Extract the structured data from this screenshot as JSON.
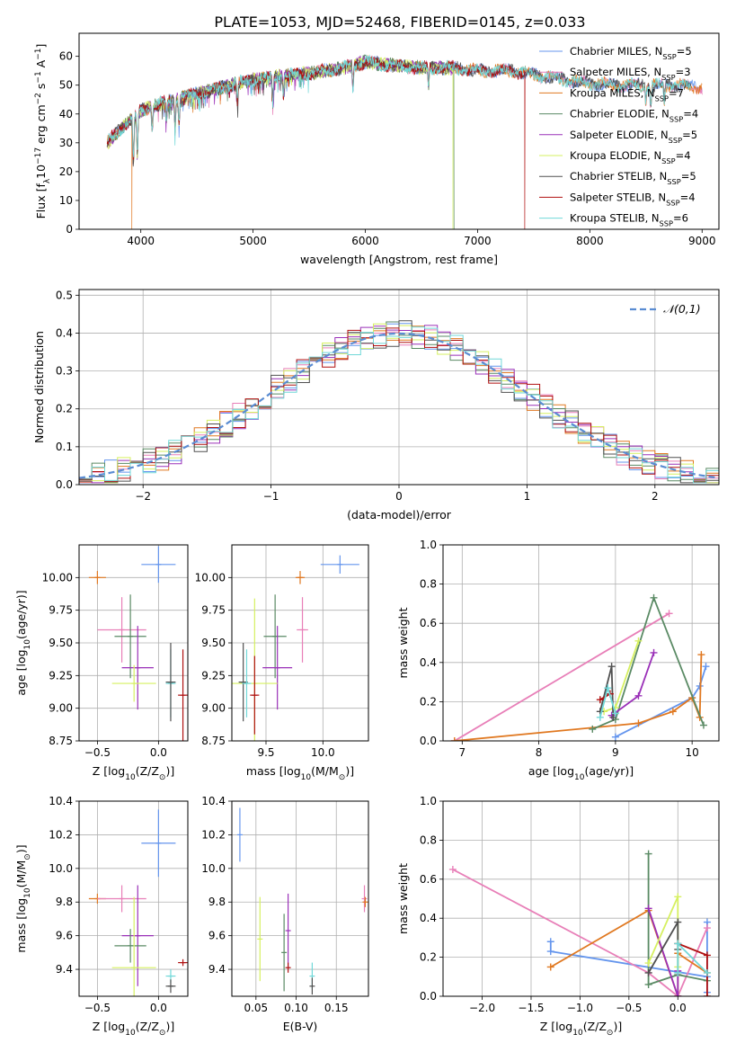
{
  "figure_title": "PLATE=1053, MJD=52468, FIBERID=0145, z=0.033",
  "colors": {
    "Chabrier MILES": "#6495ed",
    "Salpeter MILES": "#e87fb8",
    "Kroupa MILES": "#e07820",
    "Chabrier ELODIE": "#5a8a64",
    "Salpeter ELODIE": "#9a30b8",
    "Kroupa ELODIE": "#d6f060",
    "Chabrier STELIB": "#505050",
    "Salpeter STELIB": "#b01010",
    "Kroupa STELIB": "#70d8d8"
  },
  "chart_data": [
    {
      "id": "spectrum",
      "type": "line",
      "title": "PLATE=1053, MJD=52468, FIBERID=0145, z=0.033",
      "xlabel_parts": [
        "wavelength [Angstrom, rest frame]"
      ],
      "ylabel_parts": [
        "Flux [f",
        "λ",
        "10",
        "−17",
        " erg cm",
        "−2",
        " s",
        "−1",
        " A",
        "−1",
        "]"
      ],
      "xlim": [
        3450,
        9150
      ],
      "ylim": [
        0,
        68
      ],
      "xticks": [
        4000,
        5000,
        6000,
        7000,
        8000,
        9000
      ],
      "yticks": [
        0,
        10,
        20,
        30,
        40,
        50,
        60
      ],
      "grid": false,
      "legend": "upper right",
      "continuum": [
        [
          3700,
          30
        ],
        [
          3800,
          34
        ],
        [
          3900,
          38
        ],
        [
          4000,
          41
        ],
        [
          4200,
          44
        ],
        [
          4400,
          46
        ],
        [
          4600,
          48
        ],
        [
          4800,
          50
        ],
        [
          5000,
          52
        ],
        [
          5200,
          53
        ],
        [
          5500,
          54
        ],
        [
          5800,
          56
        ],
        [
          6000,
          58
        ],
        [
          6200,
          57
        ],
        [
          6500,
          56
        ],
        [
          6800,
          56
        ],
        [
          7000,
          55
        ],
        [
          7300,
          55
        ],
        [
          7600,
          53
        ],
        [
          7900,
          51
        ],
        [
          8200,
          50
        ],
        [
          8500,
          50
        ],
        [
          8800,
          50
        ],
        [
          9000,
          49
        ]
      ],
      "absorption_features": [
        [
          3934,
          16
        ],
        [
          3969,
          14
        ],
        [
          4102,
          8
        ],
        [
          4227,
          6
        ],
        [
          4305,
          9
        ],
        [
          4340,
          8
        ],
        [
          4861,
          7
        ],
        [
          5175,
          9
        ],
        [
          5270,
          6
        ],
        [
          5890,
          8
        ],
        [
          6563,
          6
        ],
        [
          8498,
          5
        ],
        [
          8542,
          7
        ],
        [
          8662,
          6
        ]
      ],
      "drops": [
        {
          "series": "Chabrier STELIB",
          "x": 3870
        },
        {
          "series": "Kroupa MILES",
          "x": 3920
        },
        {
          "series": "Chabrier ELODIE",
          "x": 6790
        },
        {
          "series": "Kroupa ELODIE",
          "x": 6780
        },
        {
          "series": "Salpeter STELIB",
          "x": 7420
        }
      ],
      "series": [
        {
          "name": "Chabrier MILES, N",
          "sub": "SSP",
          "suffix": "=5",
          "range": [
            3700,
            9000
          ]
        },
        {
          "name": "Salpeter MILES, N",
          "sub": "SSP",
          "suffix": "=3",
          "range": [
            3700,
            9000
          ]
        },
        {
          "name": "Kroupa MILES, N",
          "sub": "SSP",
          "suffix": "=7",
          "range": [
            3700,
            9000
          ]
        },
        {
          "name": "Chabrier ELODIE, N",
          "sub": "SSP",
          "suffix": "=4",
          "range": [
            3700,
            6790
          ]
        },
        {
          "name": "Salpeter ELODIE, N",
          "sub": "SSP",
          "suffix": "=5",
          "range": [
            3700,
            6790
          ]
        },
        {
          "name": "Kroupa ELODIE, N",
          "sub": "SSP",
          "suffix": "=4",
          "range": [
            3700,
            6780
          ]
        },
        {
          "name": "Chabrier STELIB, N",
          "sub": "SSP",
          "suffix": "=5",
          "range": [
            3700,
            8900
          ]
        },
        {
          "name": "Salpeter STELIB, N",
          "sub": "SSP",
          "suffix": "=4",
          "range": [
            3700,
            7420
          ]
        },
        {
          "name": "Kroupa STELIB, N",
          "sub": "SSP",
          "suffix": "=6",
          "range": [
            3700,
            8900
          ]
        }
      ]
    },
    {
      "id": "residuals",
      "type": "histogram",
      "xlabel_parts": [
        "(data-model)/error"
      ],
      "ylabel_parts": [
        "Normed distribution"
      ],
      "xlim": [
        -2.5,
        2.5
      ],
      "ylim": [
        0,
        0.515
      ],
      "xticks": [
        -2,
        -1,
        0,
        1,
        2
      ],
      "yticks": [
        0.0,
        0.1,
        0.2,
        0.3,
        0.4,
        0.5
      ],
      "grid": true,
      "bin_width": 0.1,
      "legend": "upper right",
      "reference_curve": {
        "label": "𝒩(0,1)",
        "mean": 0,
        "sigma": 1,
        "color": "#5a8cd2"
      }
    },
    {
      "id": "age_vs_Z",
      "type": "errorbar",
      "xlabel_parts": [
        "Z [log",
        "10",
        "(Z/Z",
        "⊙",
        ")]"
      ],
      "ylabel_parts": [
        "age  [log",
        "10",
        "(age/yr)]"
      ],
      "xlim": [
        -0.65,
        0.24
      ],
      "ylim": [
        8.75,
        10.25
      ],
      "xticks": [
        -0.5,
        0.0
      ],
      "yticks": [
        8.75,
        9.0,
        9.25,
        9.5,
        9.75,
        10.0
      ],
      "grid": true,
      "points": [
        {
          "series": "Chabrier MILES",
          "x": 0.0,
          "xerr": 0.14,
          "y": 10.1,
          "yerr": 0.14
        },
        {
          "series": "Kroupa MILES",
          "x": -0.5,
          "xerr": 0.07,
          "y": 10.0,
          "yerr": 0.05
        },
        {
          "series": "Salpeter MILES",
          "x": -0.3,
          "xerr": 0.2,
          "y": 9.6,
          "yerr": 0.25
        },
        {
          "series": "Chabrier ELODIE",
          "x": -0.23,
          "xerr": 0.13,
          "y": 9.55,
          "yerr": 0.32
        },
        {
          "series": "Salpeter ELODIE",
          "x": -0.17,
          "xerr": 0.13,
          "y": 9.31,
          "yerr": 0.32
        },
        {
          "series": "Kroupa ELODIE",
          "x": -0.2,
          "xerr": 0.18,
          "y": 9.19,
          "yerr": 0.14
        },
        {
          "series": "Kroupa STELIB",
          "x": 0.1,
          "xerr": 0.04,
          "y": 9.19,
          "yerr": 0.26
        },
        {
          "series": "Chabrier STELIB",
          "x": 0.1,
          "xerr": 0.04,
          "y": 9.2,
          "yerr": 0.3
        },
        {
          "series": "Salpeter STELIB",
          "x": 0.2,
          "xerr": 0.04,
          "y": 9.1,
          "yerr": 0.35
        }
      ]
    },
    {
      "id": "age_vs_mass",
      "type": "errorbar",
      "xlabel_parts": [
        "mass [log",
        "10",
        "(M/M",
        "⊙",
        ")]"
      ],
      "ylabel_parts": [
        ""
      ],
      "xlim": [
        9.2,
        10.4
      ],
      "ylim": [
        8.75,
        10.25
      ],
      "xticks": [
        9.5,
        10.0
      ],
      "yticks": [
        8.75,
        9.0,
        9.25,
        9.5,
        9.75,
        10.0
      ],
      "grid": true,
      "points": [
        {
          "series": "Chabrier MILES",
          "x": 10.15,
          "xerr": 0.17,
          "y": 10.1,
          "yerr": 0.07
        },
        {
          "series": "Kroupa MILES",
          "x": 9.8,
          "xerr": 0.04,
          "y": 10.0,
          "yerr": 0.05
        },
        {
          "series": "Salpeter MILES",
          "x": 9.82,
          "xerr": 0.05,
          "y": 9.6,
          "yerr": 0.25
        },
        {
          "series": "Chabrier ELODIE",
          "x": 9.58,
          "xerr": 0.1,
          "y": 9.55,
          "yerr": 0.32
        },
        {
          "series": "Salpeter ELODIE",
          "x": 9.6,
          "xerr": 0.13,
          "y": 9.31,
          "yerr": 0.32
        },
        {
          "series": "Kroupa ELODIE",
          "x": 9.4,
          "xerr": 0.2,
          "y": 9.19,
          "yerr": 0.65
        },
        {
          "series": "Chabrier STELIB",
          "x": 9.3,
          "xerr": 0.04,
          "y": 9.2,
          "yerr": 0.3
        },
        {
          "series": "Kroupa STELIB",
          "x": 9.33,
          "xerr": 0.04,
          "y": 9.19,
          "yerr": 0.26
        },
        {
          "series": "Salpeter STELIB",
          "x": 9.4,
          "xerr": 0.04,
          "y": 9.1,
          "yerr": 0.3
        }
      ]
    },
    {
      "id": "weight_vs_age",
      "type": "line",
      "xlabel_parts": [
        "age  [log",
        "10",
        "(age/yr)]"
      ],
      "ylabel_parts": [
        "mass weight"
      ],
      "xlim": [
        6.75,
        10.35
      ],
      "ylim": [
        0,
        1.0
      ],
      "xticks": [
        7,
        8,
        9,
        10
      ],
      "yticks": [
        0.0,
        0.2,
        0.4,
        0.6,
        0.8,
        1.0
      ],
      "grid": true,
      "series": [
        {
          "name": "Chabrier MILES",
          "x": [
            9.0,
            10.0,
            10.1,
            10.18
          ],
          "y": [
            0.02,
            0.22,
            0.28,
            0.38
          ]
        },
        {
          "name": "Salpeter MILES",
          "x": [
            6.9,
            9.7
          ],
          "y": [
            0.0,
            0.65
          ]
        },
        {
          "name": "Kroupa MILES",
          "x": [
            6.9,
            9.3,
            9.75,
            10.0,
            10.1,
            10.12
          ],
          "y": [
            0.0,
            0.09,
            0.15,
            0.22,
            0.12,
            0.44
          ]
        },
        {
          "name": "Chabrier ELODIE",
          "x": [
            8.7,
            9.0,
            9.5,
            10.15
          ],
          "y": [
            0.06,
            0.11,
            0.73,
            0.08
          ]
        },
        {
          "name": "Salpeter ELODIE",
          "x": [
            8.95,
            9.3,
            9.5
          ],
          "y": [
            0.13,
            0.23,
            0.45
          ]
        },
        {
          "name": "Kroupa ELODIE",
          "x": [
            8.85,
            9.0,
            9.3
          ],
          "y": [
            0.15,
            0.17,
            0.51
          ]
        },
        {
          "name": "Chabrier STELIB",
          "x": [
            8.8,
            8.95,
            8.97
          ],
          "y": [
            0.15,
            0.38,
            0.12
          ]
        },
        {
          "name": "Salpeter STELIB",
          "x": [
            8.8,
            8.93
          ],
          "y": [
            0.21,
            0.24
          ]
        },
        {
          "name": "Kroupa STELIB",
          "x": [
            8.8,
            8.9,
            9.0
          ],
          "y": [
            0.12,
            0.27,
            0.14
          ]
        }
      ]
    },
    {
      "id": "mass_vs_Z",
      "type": "errorbar",
      "xlabel_parts": [
        "Z [log",
        "10",
        "(Z/Z",
        "⊙",
        ")]"
      ],
      "ylabel_parts": [
        "mass [log",
        "10",
        "(M/M",
        "⊙",
        ")]"
      ],
      "xlim": [
        -0.65,
        0.24
      ],
      "ylim": [
        9.24,
        10.4
      ],
      "xticks": [
        -0.5,
        0.0
      ],
      "yticks": [
        9.4,
        9.6,
        9.8,
        10.0,
        10.2,
        10.4
      ],
      "grid": true,
      "points": [
        {
          "series": "Chabrier MILES",
          "x": 0.0,
          "xerr": 0.14,
          "y": 10.15,
          "yerr": 0.2
        },
        {
          "series": "Kroupa MILES",
          "x": -0.5,
          "xerr": 0.07,
          "y": 9.82,
          "yerr": 0.03
        },
        {
          "series": "Salpeter MILES",
          "x": -0.3,
          "xerr": 0.2,
          "y": 9.82,
          "yerr": 0.08
        },
        {
          "series": "Salpeter ELODIE",
          "x": -0.17,
          "xerr": 0.13,
          "y": 9.6,
          "yerr": 0.3
        },
        {
          "series": "Chabrier ELODIE",
          "x": -0.23,
          "xerr": 0.13,
          "y": 9.54,
          "yerr": 0.1
        },
        {
          "series": "Kroupa ELODIE",
          "x": -0.2,
          "xerr": 0.18,
          "y": 9.41,
          "yerr": 0.42
        },
        {
          "series": "Kroupa STELIB",
          "x": 0.1,
          "xerr": 0.04,
          "y": 9.36,
          "yerr": 0.04
        },
        {
          "series": "Chabrier STELIB",
          "x": 0.1,
          "xerr": 0.04,
          "y": 9.3,
          "yerr": 0.04
        },
        {
          "series": "Salpeter STELIB",
          "x": 0.2,
          "xerr": 0.04,
          "y": 9.44,
          "yerr": 0.02
        }
      ]
    },
    {
      "id": "mass_vs_EBV",
      "type": "errorbar",
      "xlabel_parts": [
        "E(B-V)"
      ],
      "ylabel_parts": [
        ""
      ],
      "xlim": [
        0.02,
        0.19
      ],
      "ylim": [
        9.24,
        10.4
      ],
      "xticks": [
        0.05,
        0.1,
        0.15
      ],
      "yticks": [
        9.4,
        9.6,
        9.8,
        10.0,
        10.2,
        10.4
      ],
      "grid": true,
      "points": [
        {
          "series": "Chabrier MILES",
          "x": 0.03,
          "xerr": 0.0,
          "y": 10.2,
          "yerr": 0.16
        },
        {
          "series": "Salpeter MILES",
          "x": 0.185,
          "xerr": 0.0,
          "y": 9.82,
          "yerr": 0.08
        },
        {
          "series": "Kroupa MILES",
          "x": 0.186,
          "xerr": 0.0,
          "y": 9.8,
          "yerr": 0.03
        },
        {
          "series": "Kroupa ELODIE",
          "x": 0.055,
          "xerr": 0.0,
          "y": 9.58,
          "yerr": 0.25
        },
        {
          "series": "Salpeter ELODIE",
          "x": 0.09,
          "xerr": 0.0,
          "y": 9.63,
          "yerr": 0.22
        },
        {
          "series": "Chabrier ELODIE",
          "x": 0.085,
          "xerr": 0.0,
          "y": 9.5,
          "yerr": 0.23
        },
        {
          "series": "Salpeter STELIB",
          "x": 0.09,
          "xerr": 0.0,
          "y": 9.41,
          "yerr": 0.03
        },
        {
          "series": "Kroupa STELIB",
          "x": 0.12,
          "xerr": 0.0,
          "y": 9.36,
          "yerr": 0.08
        },
        {
          "series": "Chabrier STELIB",
          "x": 0.12,
          "xerr": 0.0,
          "y": 9.3,
          "yerr": 0.05
        }
      ]
    },
    {
      "id": "weight_vs_Z",
      "type": "line",
      "xlabel_parts": [
        "Z [log",
        "10",
        "(Z/Z",
        "⊙",
        ")]"
      ],
      "ylabel_parts": [
        "mass weight"
      ],
      "xlim": [
        -2.4,
        0.42
      ],
      "ylim": [
        0,
        1.0
      ],
      "xticks": [
        -2.0,
        -1.5,
        -1.0,
        -0.5,
        0.0
      ],
      "yticks": [
        0.0,
        0.2,
        0.4,
        0.6,
        0.8,
        1.0
      ],
      "grid": true,
      "series": [
        {
          "name": "Chabrier MILES",
          "x": [
            -1.3,
            -1.3,
            0.3,
            0.3,
            0.3
          ],
          "y": [
            0.28,
            0.23,
            0.1,
            0.38,
            0.02
          ]
        },
        {
          "name": "Salpeter MILES",
          "x": [
            -2.3,
            -0.3,
            0.0,
            0.3
          ],
          "y": [
            0.65,
            0.12,
            0.0,
            0.35
          ]
        },
        {
          "name": "Kroupa MILES",
          "x": [
            -1.3,
            -0.3,
            0.0,
            0.0,
            0.3
          ],
          "y": [
            0.15,
            0.44,
            0.0,
            0.22,
            0.12
          ]
        },
        {
          "name": "Chabrier ELODIE",
          "x": [
            -0.3,
            -0.3,
            0.0,
            0.3
          ],
          "y": [
            0.73,
            0.06,
            0.11,
            0.08
          ]
        },
        {
          "name": "Salpeter ELODIE",
          "x": [
            -0.3,
            0.0,
            0.0
          ],
          "y": [
            0.45,
            0.0,
            0.13
          ]
        },
        {
          "name": "Kroupa ELODIE",
          "x": [
            -0.3,
            0.0,
            0.0
          ],
          "y": [
            0.17,
            0.51,
            0.15
          ]
        },
        {
          "name": "Chabrier STELIB",
          "x": [
            -0.3,
            0.0,
            0.0
          ],
          "y": [
            0.12,
            0.38,
            0.24
          ]
        },
        {
          "name": "Salpeter STELIB",
          "x": [
            0.0,
            0.3,
            0.3
          ],
          "y": [
            0.27,
            0.21,
            0.0
          ]
        },
        {
          "name": "Kroupa STELIB",
          "x": [
            0.0,
            0.0,
            0.3
          ],
          "y": [
            0.12,
            0.27,
            0.12
          ]
        }
      ]
    }
  ]
}
